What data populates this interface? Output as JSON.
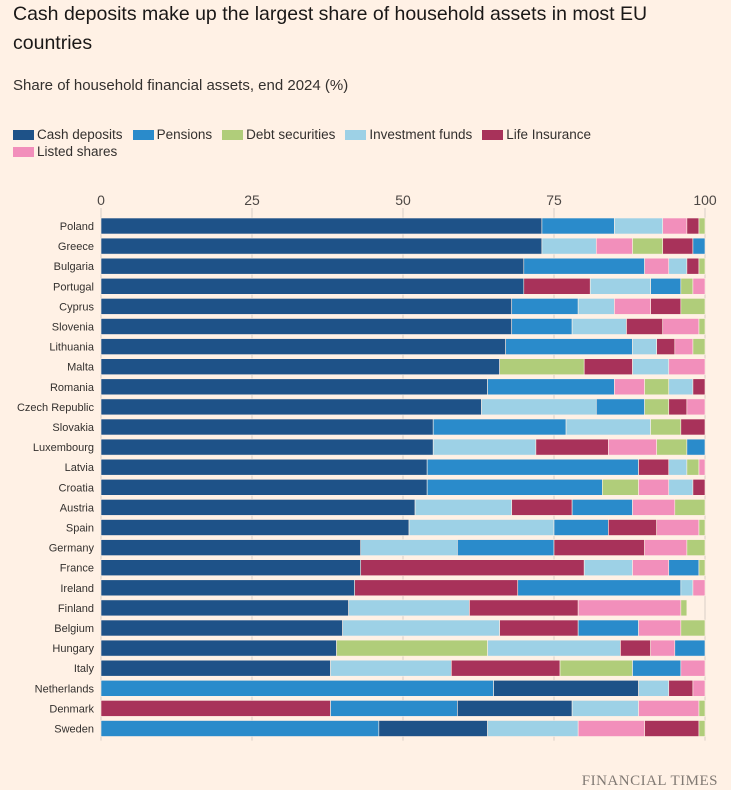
{
  "header": {
    "title": "Cash deposits make up the largest share of household assets in most EU countries",
    "subtitle": "Share of household financial assets, end 2024 (%)"
  },
  "footer": {
    "source": "FINANCIAL TIMES"
  },
  "colors": {
    "cash": "#1e5288",
    "pensions": "#2a8bcb",
    "debt": "#b0cd7a",
    "funds": "#9dd1e6",
    "life": "#a8325a",
    "shares": "#f28fbb",
    "background": "#fff1e5"
  },
  "chart_data": {
    "type": "bar",
    "orientation": "horizontal",
    "stacked": true,
    "title": "Cash deposits make up the largest share of household assets in most EU countries",
    "subtitle": "Share of household financial assets, end 2024 (%)",
    "xlabel": "",
    "ylabel": "",
    "xlim": [
      0,
      100
    ],
    "xticks": [
      0,
      25,
      50,
      75,
      100
    ],
    "grid": true,
    "legend_position": "top",
    "series": [
      {
        "key": "cash",
        "name": "Cash deposits",
        "color": "#1e5288"
      },
      {
        "key": "pensions",
        "name": "Pensions",
        "color": "#2a8bcb"
      },
      {
        "key": "debt",
        "name": "Debt securities",
        "color": "#b0cd7a"
      },
      {
        "key": "funds",
        "name": "Investment funds",
        "color": "#9dd1e6"
      },
      {
        "key": "life",
        "name": "Life Insurance",
        "color": "#a8325a"
      },
      {
        "key": "shares",
        "name": "Listed shares",
        "color": "#f28fbb"
      }
    ],
    "rows": [
      {
        "country": "Poland",
        "segments": [
          {
            "s": "cash",
            "v": 73
          },
          {
            "s": "pensions",
            "v": 12
          },
          {
            "s": "funds",
            "v": 8
          },
          {
            "s": "shares",
            "v": 4
          },
          {
            "s": "life",
            "v": 2
          },
          {
            "s": "debt",
            "v": 1
          }
        ]
      },
      {
        "country": "Greece",
        "segments": [
          {
            "s": "cash",
            "v": 73
          },
          {
            "s": "funds",
            "v": 9
          },
          {
            "s": "shares",
            "v": 6
          },
          {
            "s": "debt",
            "v": 5
          },
          {
            "s": "life",
            "v": 5
          },
          {
            "s": "pensions",
            "v": 2
          }
        ]
      },
      {
        "country": "Bulgaria",
        "segments": [
          {
            "s": "cash",
            "v": 70
          },
          {
            "s": "pensions",
            "v": 20
          },
          {
            "s": "shares",
            "v": 4
          },
          {
            "s": "funds",
            "v": 3
          },
          {
            "s": "life",
            "v": 2
          },
          {
            "s": "debt",
            "v": 1
          }
        ]
      },
      {
        "country": "Portugal",
        "segments": [
          {
            "s": "cash",
            "v": 70
          },
          {
            "s": "life",
            "v": 11
          },
          {
            "s": "funds",
            "v": 10
          },
          {
            "s": "pensions",
            "v": 5
          },
          {
            "s": "debt",
            "v": 2
          },
          {
            "s": "shares",
            "v": 2
          }
        ]
      },
      {
        "country": "Cyprus",
        "segments": [
          {
            "s": "cash",
            "v": 68
          },
          {
            "s": "pensions",
            "v": 11
          },
          {
            "s": "funds",
            "v": 6
          },
          {
            "s": "shares",
            "v": 6
          },
          {
            "s": "life",
            "v": 5
          },
          {
            "s": "debt",
            "v": 4
          }
        ]
      },
      {
        "country": "Slovenia",
        "segments": [
          {
            "s": "cash",
            "v": 68
          },
          {
            "s": "pensions",
            "v": 10
          },
          {
            "s": "funds",
            "v": 9
          },
          {
            "s": "life",
            "v": 6
          },
          {
            "s": "shares",
            "v": 6
          },
          {
            "s": "debt",
            "v": 1
          }
        ]
      },
      {
        "country": "Lithuania",
        "segments": [
          {
            "s": "cash",
            "v": 67
          },
          {
            "s": "pensions",
            "v": 21
          },
          {
            "s": "funds",
            "v": 4
          },
          {
            "s": "life",
            "v": 3
          },
          {
            "s": "shares",
            "v": 3
          },
          {
            "s": "debt",
            "v": 2
          }
        ]
      },
      {
        "country": "Malta",
        "segments": [
          {
            "s": "cash",
            "v": 66
          },
          {
            "s": "debt",
            "v": 14
          },
          {
            "s": "life",
            "v": 8
          },
          {
            "s": "funds",
            "v": 6
          },
          {
            "s": "shares",
            "v": 6
          }
        ]
      },
      {
        "country": "Romania",
        "segments": [
          {
            "s": "cash",
            "v": 64
          },
          {
            "s": "pensions",
            "v": 21
          },
          {
            "s": "shares",
            "v": 5
          },
          {
            "s": "debt",
            "v": 4
          },
          {
            "s": "funds",
            "v": 4
          },
          {
            "s": "life",
            "v": 2
          }
        ]
      },
      {
        "country": "Czech Republic",
        "segments": [
          {
            "s": "cash",
            "v": 63
          },
          {
            "s": "funds",
            "v": 19
          },
          {
            "s": "pensions",
            "v": 8
          },
          {
            "s": "debt",
            "v": 4
          },
          {
            "s": "life",
            "v": 3
          },
          {
            "s": "shares",
            "v": 3
          }
        ]
      },
      {
        "country": "Slovakia",
        "segments": [
          {
            "s": "cash",
            "v": 55
          },
          {
            "s": "pensions",
            "v": 22
          },
          {
            "s": "funds",
            "v": 14
          },
          {
            "s": "debt",
            "v": 5
          },
          {
            "s": "life",
            "v": 4
          },
          {
            "s": "shares",
            "v": 1
          }
        ]
      },
      {
        "country": "Luxembourg",
        "segments": [
          {
            "s": "cash",
            "v": 55
          },
          {
            "s": "funds",
            "v": 17
          },
          {
            "s": "life",
            "v": 12
          },
          {
            "s": "shares",
            "v": 8
          },
          {
            "s": "debt",
            "v": 5
          },
          {
            "s": "pensions",
            "v": 4
          }
        ]
      },
      {
        "country": "Latvia",
        "segments": [
          {
            "s": "cash",
            "v": 54
          },
          {
            "s": "pensions",
            "v": 35
          },
          {
            "s": "life",
            "v": 5
          },
          {
            "s": "funds",
            "v": 3
          },
          {
            "s": "debt",
            "v": 2
          },
          {
            "s": "shares",
            "v": 2
          }
        ]
      },
      {
        "country": "Croatia",
        "segments": [
          {
            "s": "cash",
            "v": 54
          },
          {
            "s": "pensions",
            "v": 29
          },
          {
            "s": "debt",
            "v": 6
          },
          {
            "s": "shares",
            "v": 5
          },
          {
            "s": "funds",
            "v": 4
          },
          {
            "s": "life",
            "v": 3
          }
        ]
      },
      {
        "country": "Austria",
        "segments": [
          {
            "s": "cash",
            "v": 52
          },
          {
            "s": "funds",
            "v": 16
          },
          {
            "s": "life",
            "v": 10
          },
          {
            "s": "pensions",
            "v": 10
          },
          {
            "s": "shares",
            "v": 7
          },
          {
            "s": "debt",
            "v": 5
          }
        ]
      },
      {
        "country": "Spain",
        "segments": [
          {
            "s": "cash",
            "v": 51
          },
          {
            "s": "funds",
            "v": 24
          },
          {
            "s": "pensions",
            "v": 9
          },
          {
            "s": "life",
            "v": 8
          },
          {
            "s": "shares",
            "v": 7
          },
          {
            "s": "debt",
            "v": 2
          }
        ]
      },
      {
        "country": "Germany",
        "segments": [
          {
            "s": "cash",
            "v": 43
          },
          {
            "s": "funds",
            "v": 16
          },
          {
            "s": "pensions",
            "v": 16
          },
          {
            "s": "life",
            "v": 15
          },
          {
            "s": "shares",
            "v": 7
          },
          {
            "s": "debt",
            "v": 3
          }
        ]
      },
      {
        "country": "France",
        "segments": [
          {
            "s": "cash",
            "v": 43
          },
          {
            "s": "life",
            "v": 37
          },
          {
            "s": "funds",
            "v": 8
          },
          {
            "s": "shares",
            "v": 6
          },
          {
            "s": "pensions",
            "v": 5
          },
          {
            "s": "debt",
            "v": 1
          }
        ]
      },
      {
        "country": "Ireland",
        "segments": [
          {
            "s": "cash",
            "v": 42
          },
          {
            "s": "life",
            "v": 27
          },
          {
            "s": "pensions",
            "v": 27
          },
          {
            "s": "funds",
            "v": 2
          },
          {
            "s": "shares",
            "v": 2
          }
        ]
      },
      {
        "country": "Finland",
        "segments": [
          {
            "s": "cash",
            "v": 41
          },
          {
            "s": "funds",
            "v": 20
          },
          {
            "s": "life",
            "v": 18
          },
          {
            "s": "shares",
            "v": 17
          },
          {
            "s": "debt",
            "v": 1
          }
        ]
      },
      {
        "country": "Belgium",
        "segments": [
          {
            "s": "cash",
            "v": 40
          },
          {
            "s": "funds",
            "v": 26
          },
          {
            "s": "life",
            "v": 13
          },
          {
            "s": "pensions",
            "v": 10
          },
          {
            "s": "shares",
            "v": 7
          },
          {
            "s": "debt",
            "v": 4
          }
        ]
      },
      {
        "country": "Hungary",
        "segments": [
          {
            "s": "cash",
            "v": 39
          },
          {
            "s": "debt",
            "v": 25
          },
          {
            "s": "funds",
            "v": 22
          },
          {
            "s": "life",
            "v": 5
          },
          {
            "s": "shares",
            "v": 4
          },
          {
            "s": "pensions",
            "v": 5
          }
        ]
      },
      {
        "country": "Italy",
        "segments": [
          {
            "s": "cash",
            "v": 38
          },
          {
            "s": "funds",
            "v": 20
          },
          {
            "s": "life",
            "v": 18
          },
          {
            "s": "debt",
            "v": 12
          },
          {
            "s": "pensions",
            "v": 8
          },
          {
            "s": "shares",
            "v": 4
          }
        ]
      },
      {
        "country": "Netherlands",
        "segments": [
          {
            "s": "pensions",
            "v": 65
          },
          {
            "s": "cash",
            "v": 24
          },
          {
            "s": "funds",
            "v": 5
          },
          {
            "s": "life",
            "v": 4
          },
          {
            "s": "shares",
            "v": 2
          }
        ]
      },
      {
        "country": "Denmark",
        "segments": [
          {
            "s": "life",
            "v": 38
          },
          {
            "s": "pensions",
            "v": 21
          },
          {
            "s": "cash",
            "v": 19
          },
          {
            "s": "funds",
            "v": 11
          },
          {
            "s": "shares",
            "v": 10
          },
          {
            "s": "debt",
            "v": 1
          }
        ]
      },
      {
        "country": "Sweden",
        "segments": [
          {
            "s": "pensions",
            "v": 46
          },
          {
            "s": "cash",
            "v": 18
          },
          {
            "s": "funds",
            "v": 15
          },
          {
            "s": "shares",
            "v": 11
          },
          {
            "s": "life",
            "v": 9
          },
          {
            "s": "debt",
            "v": 1
          }
        ]
      }
    ]
  }
}
